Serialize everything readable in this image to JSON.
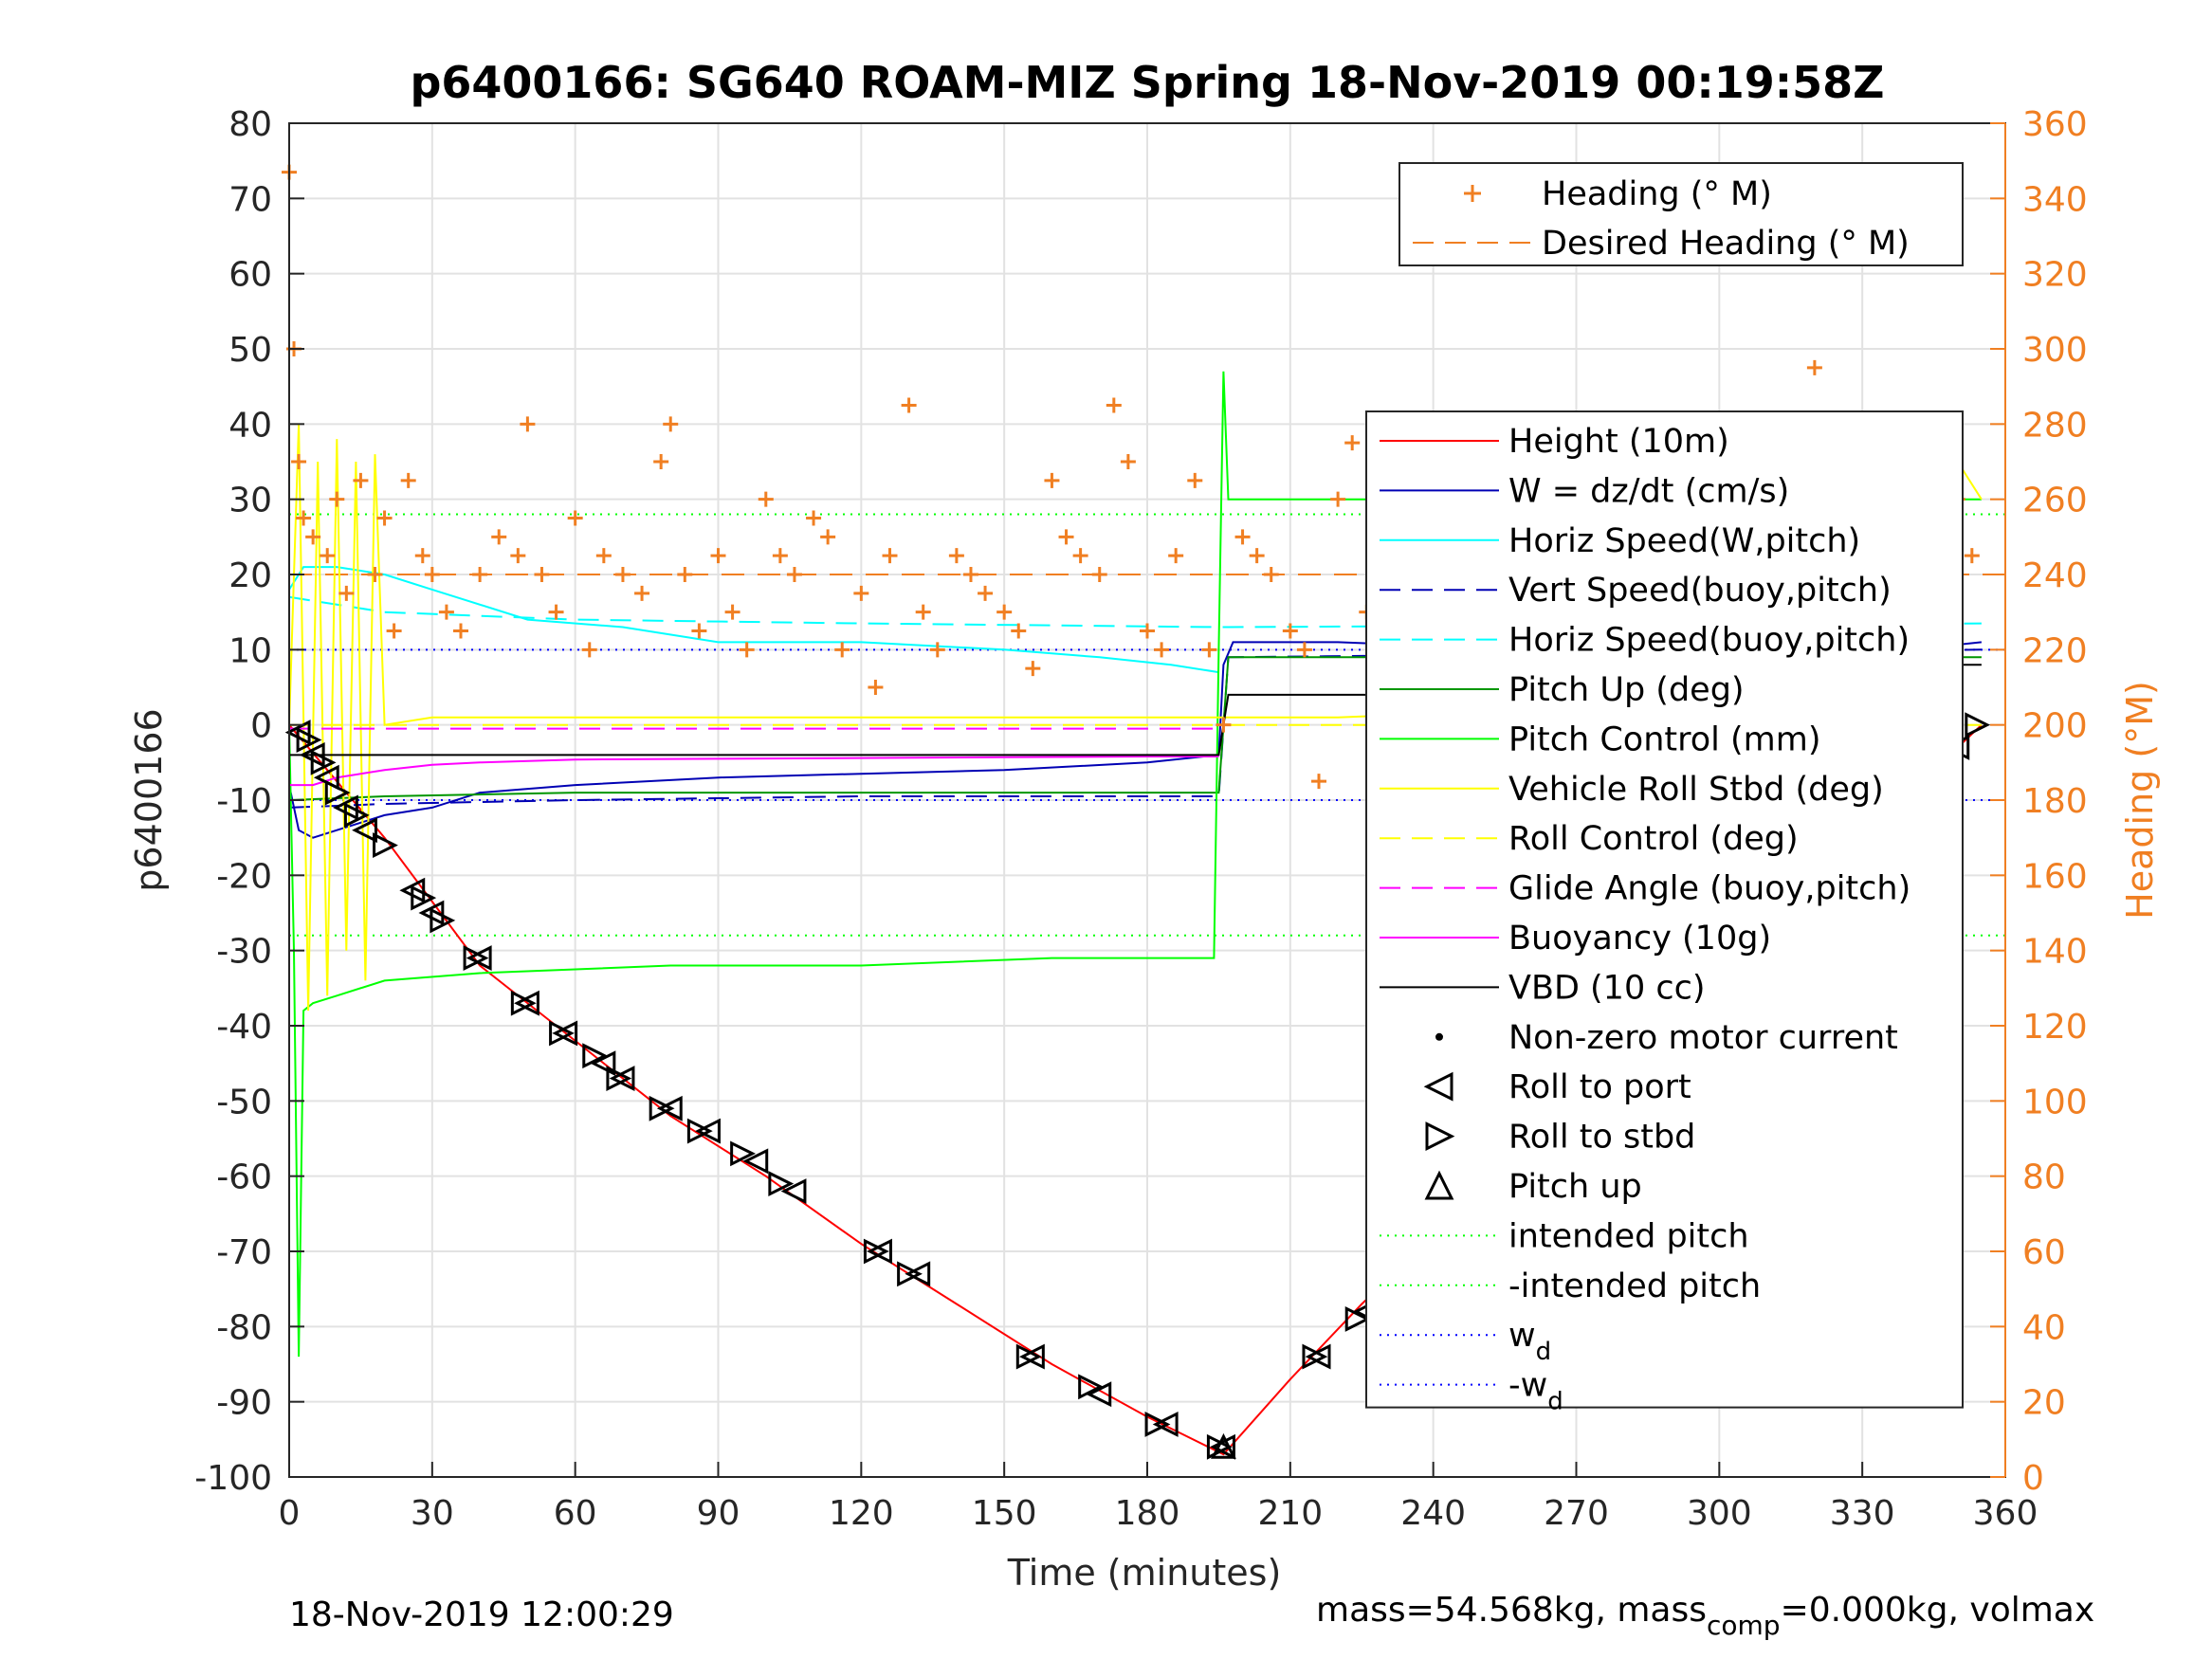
{
  "chart_data": {
    "type": "line",
    "title": "p6400166: SG640 ROAM-MIZ Spring 18-Nov-2019 00:19:58Z",
    "xlabel": "Time (minutes)",
    "ylabel": "p6400166",
    "ylabel_right": "Heading (°M)",
    "xlim": [
      0,
      360
    ],
    "ylim": [
      -100,
      80
    ],
    "ylim_right": [
      0,
      360
    ],
    "xticks": [
      0,
      30,
      60,
      90,
      120,
      150,
      180,
      210,
      240,
      270,
      300,
      330,
      360
    ],
    "yticks": [
      80,
      70,
      60,
      50,
      40,
      30,
      20,
      10,
      0,
      -10,
      -20,
      -30,
      -40,
      -50,
      -60,
      -70,
      -80,
      -90,
      -100
    ],
    "yticks_right": [
      360,
      340,
      320,
      300,
      280,
      260,
      240,
      220,
      200,
      180,
      160,
      140,
      120,
      100,
      80,
      60,
      40,
      20,
      0
    ],
    "grid": true,
    "footer_left": "18-Nov-2019 12:00:29",
    "footer_right": "mass=54.568kg, mass",
    "footer_right_sub": "comp",
    "footer_right_tail": "=0.000kg, volmax",
    "legend_heading": [
      {
        "label": "Heading (° M)",
        "color": "#f07f22",
        "style": "plus"
      },
      {
        "label": "Desired Heading (° M)",
        "color": "#f07f22",
        "style": "dash"
      }
    ],
    "legend_main": [
      {
        "label": "Height (10m)",
        "color": "#ff0000",
        "style": "line"
      },
      {
        "label": "W = dz/dt (cm/s)",
        "color": "#0000b4",
        "style": "line"
      },
      {
        "label": "Horiz Speed(W,pitch)",
        "color": "#00ffff",
        "style": "line"
      },
      {
        "label": "Vert Speed(buoy,pitch)",
        "color": "#0000b4",
        "style": "dash"
      },
      {
        "label": "Horiz Speed(buoy,pitch)",
        "color": "#00ffff",
        "style": "dash"
      },
      {
        "label": "Pitch Up (deg)",
        "color": "#009600",
        "style": "line"
      },
      {
        "label": "Pitch Control (mm)",
        "color": "#00ff00",
        "style": "line"
      },
      {
        "label": "Vehicle Roll Stbd (deg)",
        "color": "#ffff00",
        "style": "line"
      },
      {
        "label": "Roll Control (deg)",
        "color": "#ffff00",
        "style": "dash"
      },
      {
        "label": "Glide Angle (buoy,pitch)",
        "color": "#ff00ff",
        "style": "dash"
      },
      {
        "label": "Buoyancy (10g)",
        "color": "#ff00ff",
        "style": "line"
      },
      {
        "label": "VBD (10 cc)",
        "color": "#000000",
        "style": "line"
      },
      {
        "label": "Non-zero motor current",
        "color": "#000000",
        "style": "dot"
      },
      {
        "label": "Roll to port",
        "color": "#000000",
        "style": "tri-left"
      },
      {
        "label": "Roll to stbd",
        "color": "#000000",
        "style": "tri-right"
      },
      {
        "label": "Pitch up",
        "color": "#000000",
        "style": "tri-up"
      },
      {
        "label": "intended pitch",
        "color": "#00ff00",
        "style": "dot-line"
      },
      {
        "label": "-intended pitch",
        "color": "#00ff00",
        "style": "dot-line"
      },
      {
        "label": "w",
        "sub": "d",
        "color": "#0000ff",
        "style": "dot-line"
      },
      {
        "label": "-w",
        "sub": "d",
        "color": "#0000ff",
        "style": "dot-line"
      }
    ],
    "reference_lines": {
      "intended_pitch": 28,
      "neg_intended_pitch": -28,
      "w_d": 10,
      "neg_w_d": -10,
      "desired_heading_deg": 240
    },
    "series": [
      {
        "name": "Height (10m)",
        "color": "#ff0000",
        "x": [
          0,
          20,
          40,
          60,
          80,
          100,
          120,
          140,
          160,
          180,
          196,
          210,
          225,
          240,
          260,
          280,
          300,
          320,
          340,
          355
        ],
        "y": [
          0,
          -15,
          -32,
          -42,
          -52,
          -60,
          -69,
          -77,
          -85,
          -92,
          -97,
          -87,
          -77,
          -68,
          -57,
          -45,
          -32,
          -20,
          -9,
          0
        ]
      },
      {
        "name": "W = dz/dt (cm/s)",
        "color": "#0000b4",
        "x": [
          0,
          2,
          5,
          10,
          15,
          20,
          30,
          40,
          60,
          90,
          120,
          150,
          180,
          195,
          196,
          198,
          220,
          260,
          300,
          340,
          355
        ],
        "y": [
          -8,
          -14,
          -15,
          -14,
          -13,
          -12,
          -11,
          -9,
          -8,
          -7,
          -6.5,
          -6,
          -5,
          -4,
          8,
          11,
          11,
          10,
          10,
          10,
          11
        ]
      },
      {
        "name": "Horiz Speed(W,pitch)",
        "color": "#00ffff",
        "x": [
          0,
          3,
          10,
          20,
          30,
          50,
          70,
          90,
          120,
          150,
          170,
          185,
          195
        ],
        "y": [
          18,
          21,
          21,
          20,
          18,
          14,
          13,
          11,
          11,
          10,
          9,
          8,
          7
        ]
      },
      {
        "name": "Vert Speed(buoy,pitch)",
        "color": "#0000b4",
        "x": [
          0,
          20,
          60,
          120,
          195,
          197,
          355
        ],
        "y": [
          -11,
          -10.5,
          -10,
          -9.5,
          -9.5,
          9,
          10
        ]
      },
      {
        "name": "Horiz Speed(buoy,pitch)",
        "color": "#00ffff",
        "x": [
          0,
          20,
          60,
          120,
          195,
          197,
          355
        ],
        "y": [
          17,
          15,
          14,
          13.5,
          13,
          13,
          13.5
        ]
      },
      {
        "name": "Pitch Up (deg)",
        "color": "#009600",
        "x": [
          0,
          20,
          60,
          120,
          195,
          197,
          355
        ],
        "y": [
          -10,
          -9.5,
          -9,
          -9,
          -9,
          9,
          9
        ]
      },
      {
        "name": "Pitch Control (mm)",
        "color": "#00ff00",
        "x": [
          0,
          1,
          2,
          3,
          5,
          10,
          20,
          40,
          80,
          120,
          160,
          194,
          195,
          196,
          197,
          198,
          210,
          250,
          300,
          340,
          355
        ],
        "y": [
          0,
          -30,
          -84,
          -38,
          -37,
          -36,
          -34,
          -33,
          -32,
          -32,
          -31,
          -31,
          10,
          47,
          30,
          30,
          30,
          30,
          30,
          30,
          30
        ]
      },
      {
        "name": "Vehicle Roll Stbd (deg)",
        "color": "#ffff00",
        "x": [
          0,
          2,
          4,
          6,
          8,
          10,
          12,
          14,
          16,
          18,
          20,
          30,
          40,
          60,
          80,
          100,
          120,
          140,
          160,
          180,
          195,
          197,
          220,
          260,
          300,
          330,
          340,
          350,
          355
        ],
        "y": [
          0,
          40,
          -38,
          35,
          -36,
          38,
          -30,
          35,
          -34,
          36,
          0,
          1,
          1,
          1,
          1,
          1,
          1,
          1,
          1,
          1,
          1,
          1,
          1,
          2,
          2,
          10,
          -30,
          35,
          30
        ]
      },
      {
        "name": "Roll Control (deg)",
        "color": "#ffff00",
        "x": [
          0,
          195,
          197,
          355
        ],
        "y": [
          0,
          0,
          0,
          0
        ]
      },
      {
        "name": "Glide Angle (buoy,pitch)",
        "color": "#ff00ff",
        "x": [
          0,
          195
        ],
        "y": [
          -0.5,
          -0.5
        ]
      },
      {
        "name": "Buoyancy (10g)",
        "color": "#ff00ff",
        "x": [
          0,
          5,
          10,
          20,
          30,
          40,
          60,
          90,
          120,
          150,
          180,
          195
        ],
        "y": [
          -8,
          -8,
          -7,
          -6,
          -5.3,
          -5,
          -4.6,
          -4.5,
          -4.4,
          -4.3,
          -4.2,
          -4.2
        ]
      },
      {
        "name": "VBD (10 cc)",
        "color": "#000000",
        "x": [
          0,
          195,
          196,
          197,
          236,
          237,
          308,
          309,
          355
        ],
        "y": [
          -4,
          -4,
          0,
          4,
          4,
          4.3,
          4.3,
          8,
          8
        ]
      }
    ],
    "heading_deg": {
      "x": [
        0,
        1,
        2,
        3,
        5,
        8,
        10,
        12,
        15,
        18,
        20,
        22,
        25,
        28,
        30,
        33,
        36,
        40,
        44,
        48,
        50,
        53,
        56,
        60,
        63,
        66,
        70,
        74,
        78,
        80,
        83,
        86,
        90,
        93,
        96,
        100,
        103,
        106,
        110,
        113,
        116,
        120,
        123,
        126,
        130,
        133,
        136,
        140,
        143,
        146,
        150,
        153,
        156,
        160,
        163,
        166,
        170,
        173,
        176,
        180,
        183,
        186,
        190,
        193,
        196,
        200,
        203,
        206,
        210,
        213,
        216,
        220,
        223,
        226,
        230,
        233,
        236,
        240,
        243,
        246,
        250,
        253,
        256,
        260,
        263,
        266,
        270,
        273,
        276,
        280,
        283,
        286,
        290,
        293,
        296,
        300,
        303,
        306,
        310,
        313,
        316,
        320,
        323,
        326,
        330,
        333,
        336,
        340,
        343,
        346,
        350,
        353
      ],
      "y": [
        347,
        300,
        270,
        255,
        250,
        245,
        260,
        235,
        265,
        240,
        255,
        225,
        265,
        245,
        240,
        230,
        225,
        240,
        250,
        245,
        280,
        240,
        230,
        255,
        220,
        245,
        240,
        235,
        270,
        280,
        240,
        225,
        245,
        230,
        220,
        260,
        245,
        240,
        255,
        250,
        220,
        235,
        210,
        245,
        285,
        230,
        220,
        245,
        240,
        235,
        230,
        225,
        215,
        265,
        250,
        245,
        240,
        285,
        270,
        225,
        220,
        245,
        265,
        220,
        200,
        250,
        245,
        240,
        225,
        220,
        185,
        260,
        275,
        230,
        240,
        175,
        215,
        270,
        280,
        245,
        240,
        235,
        265,
        255,
        230,
        220,
        245,
        250,
        240,
        260,
        265,
        245,
        235,
        215,
        250,
        240,
        260,
        270,
        245,
        255,
        280,
        295,
        260,
        240,
        270,
        245,
        275,
        280,
        250,
        240,
        260,
        245
      ]
    },
    "markers": {
      "roll_to_port": {
        "x": [
          2,
          5,
          8,
          12,
          16,
          26,
          30,
          40,
          50,
          58,
          66,
          70,
          80,
          88,
          98,
          106,
          124,
          132,
          156,
          170,
          184,
          196,
          216,
          226,
          240,
          250,
          262,
          276,
          286,
          300,
          316,
          330,
          344,
          350
        ],
        "y": [
          -1,
          -4,
          -7,
          -11,
          -14,
          -22,
          -25,
          -31,
          -37,
          -41,
          -45,
          -47,
          -51,
          -54,
          -58,
          -62,
          -70,
          -73,
          -84,
          -89,
          -93,
          -96,
          -84,
          -78,
          -69,
          -64,
          -56,
          -46,
          -39,
          -31,
          -22,
          -14,
          -7,
          -3
        ]
      },
      "roll_to_stbd": {
        "x": [
          4,
          7,
          10,
          14,
          20,
          28,
          32,
          39,
          49,
          57,
          64,
          69,
          78,
          86,
          95,
          103,
          123,
          130,
          155,
          168,
          182,
          195,
          215,
          224,
          238,
          248,
          260,
          274,
          284,
          298,
          314,
          328,
          342,
          348,
          354
        ],
        "y": [
          -2,
          -5,
          -9,
          -12,
          -16,
          -23,
          -26,
          -31,
          -37,
          -41,
          -44,
          -47,
          -51,
          -54,
          -57,
          -61,
          -70,
          -73,
          -84,
          -88,
          -93,
          -96,
          -84,
          -79,
          -71,
          -65,
          -57,
          -48,
          -41,
          -32,
          -23,
          -15,
          -8,
          -4,
          0
        ]
      },
      "pitch_up": {
        "x": [
          196
        ],
        "y": [
          -96
        ]
      }
    }
  }
}
